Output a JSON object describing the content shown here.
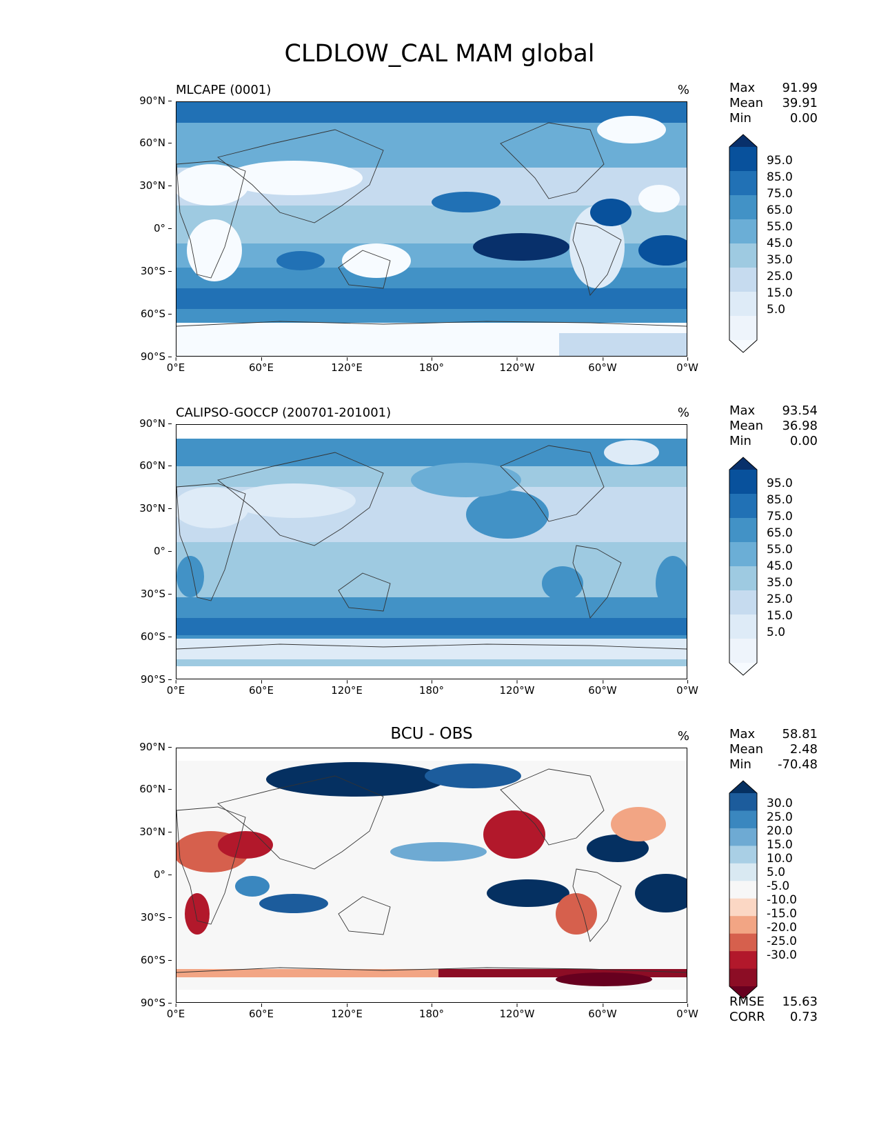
{
  "title": "CLDLOW_CAL MAM global",
  "lat_labels": [
    "90°N",
    "60°N",
    "30°N",
    "0°",
    "30°S",
    "60°S",
    "90°S"
  ],
  "lon_labels": [
    "0°E",
    "60°E",
    "120°E",
    "180°",
    "120°W",
    "60°W",
    "0°W"
  ],
  "panels": [
    {
      "title": "MLCAPE (0001)",
      "unit": "%",
      "stats": [
        {
          "label": "Max",
          "value": "91.99"
        },
        {
          "label": "Mean",
          "value": "39.91"
        },
        {
          "label": "Min",
          "value": "0.00"
        }
      ],
      "colorbar": {
        "labels": [
          "95.0",
          "85.0",
          "75.0",
          "65.0",
          "55.0",
          "45.0",
          "35.0",
          "25.0",
          "15.0",
          "5.0"
        ],
        "colors": [
          "#08306b",
          "#08519c",
          "#2171b5",
          "#4292c6",
          "#6baed6",
          "#9ecae1",
          "#c6dbef",
          "#deebf7",
          "#eef4fb",
          "#f7fbff"
        ]
      }
    },
    {
      "title": "CALIPSO-GOCCP (200701-201001)",
      "unit": "%",
      "stats": [
        {
          "label": "Max",
          "value": "93.54"
        },
        {
          "label": "Mean",
          "value": "36.98"
        },
        {
          "label": "Min",
          "value": "0.00"
        }
      ],
      "colorbar": {
        "labels": [
          "95.0",
          "85.0",
          "75.0",
          "65.0",
          "55.0",
          "45.0",
          "35.0",
          "25.0",
          "15.0",
          "5.0"
        ],
        "colors": [
          "#08306b",
          "#08519c",
          "#2171b5",
          "#4292c6",
          "#6baed6",
          "#9ecae1",
          "#c6dbef",
          "#deebf7",
          "#eef4fb",
          "#f7fbff"
        ]
      }
    },
    {
      "title": "BCU - OBS",
      "unit": "%",
      "stats": [
        {
          "label": "Max",
          "value": "58.81"
        },
        {
          "label": "Mean",
          "value": "2.48"
        },
        {
          "label": "Min",
          "value": "-70.48"
        }
      ],
      "colorbar": {
        "labels": [
          "30.0",
          "25.0",
          "20.0",
          "15.0",
          "10.0",
          "5.0",
          "-5.0",
          "-10.0",
          "-15.0",
          "-20.0",
          "-25.0",
          "-30.0"
        ],
        "colors": [
          "#053061",
          "#1c5c9c",
          "#3a87bf",
          "#6eaad3",
          "#a9cfe5",
          "#d9e9f2",
          "#f7f7f7",
          "#fbd7c4",
          "#f2a584",
          "#d6604d",
          "#b2182b",
          "#8c0d25",
          "#67001f"
        ]
      },
      "error_stats": [
        {
          "label": "RMSE",
          "value": "15.63"
        },
        {
          "label": "CORR",
          "value": "0.73"
        }
      ]
    }
  ]
}
